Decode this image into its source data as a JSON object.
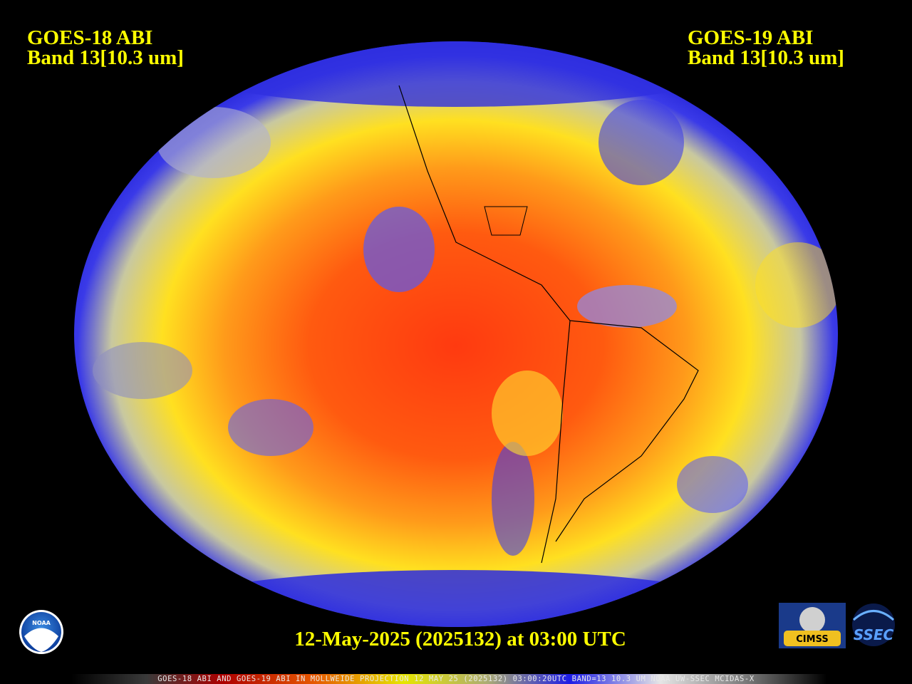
{
  "header": {
    "left_title": "GOES-18 ABI",
    "left_band": "Band 13[10.3 um]",
    "right_title": "GOES-19 ABI",
    "right_band": "Band 13[10.3 um]"
  },
  "date_line": "12-May-2025 (2025132) at 03:00 UTC",
  "footer": "GOES-18 ABI AND GOES-19 ABI IN MOLLWEIDE PROJECTION 12 MAY 25 (2025132) 03:00:20UTC BAND=13 10.3 UM NOAA UW-SSEC MCIDAS-X",
  "logos": {
    "noaa": "NOAA",
    "cimss": "CIMSS",
    "ssec": "SSEC"
  }
}
